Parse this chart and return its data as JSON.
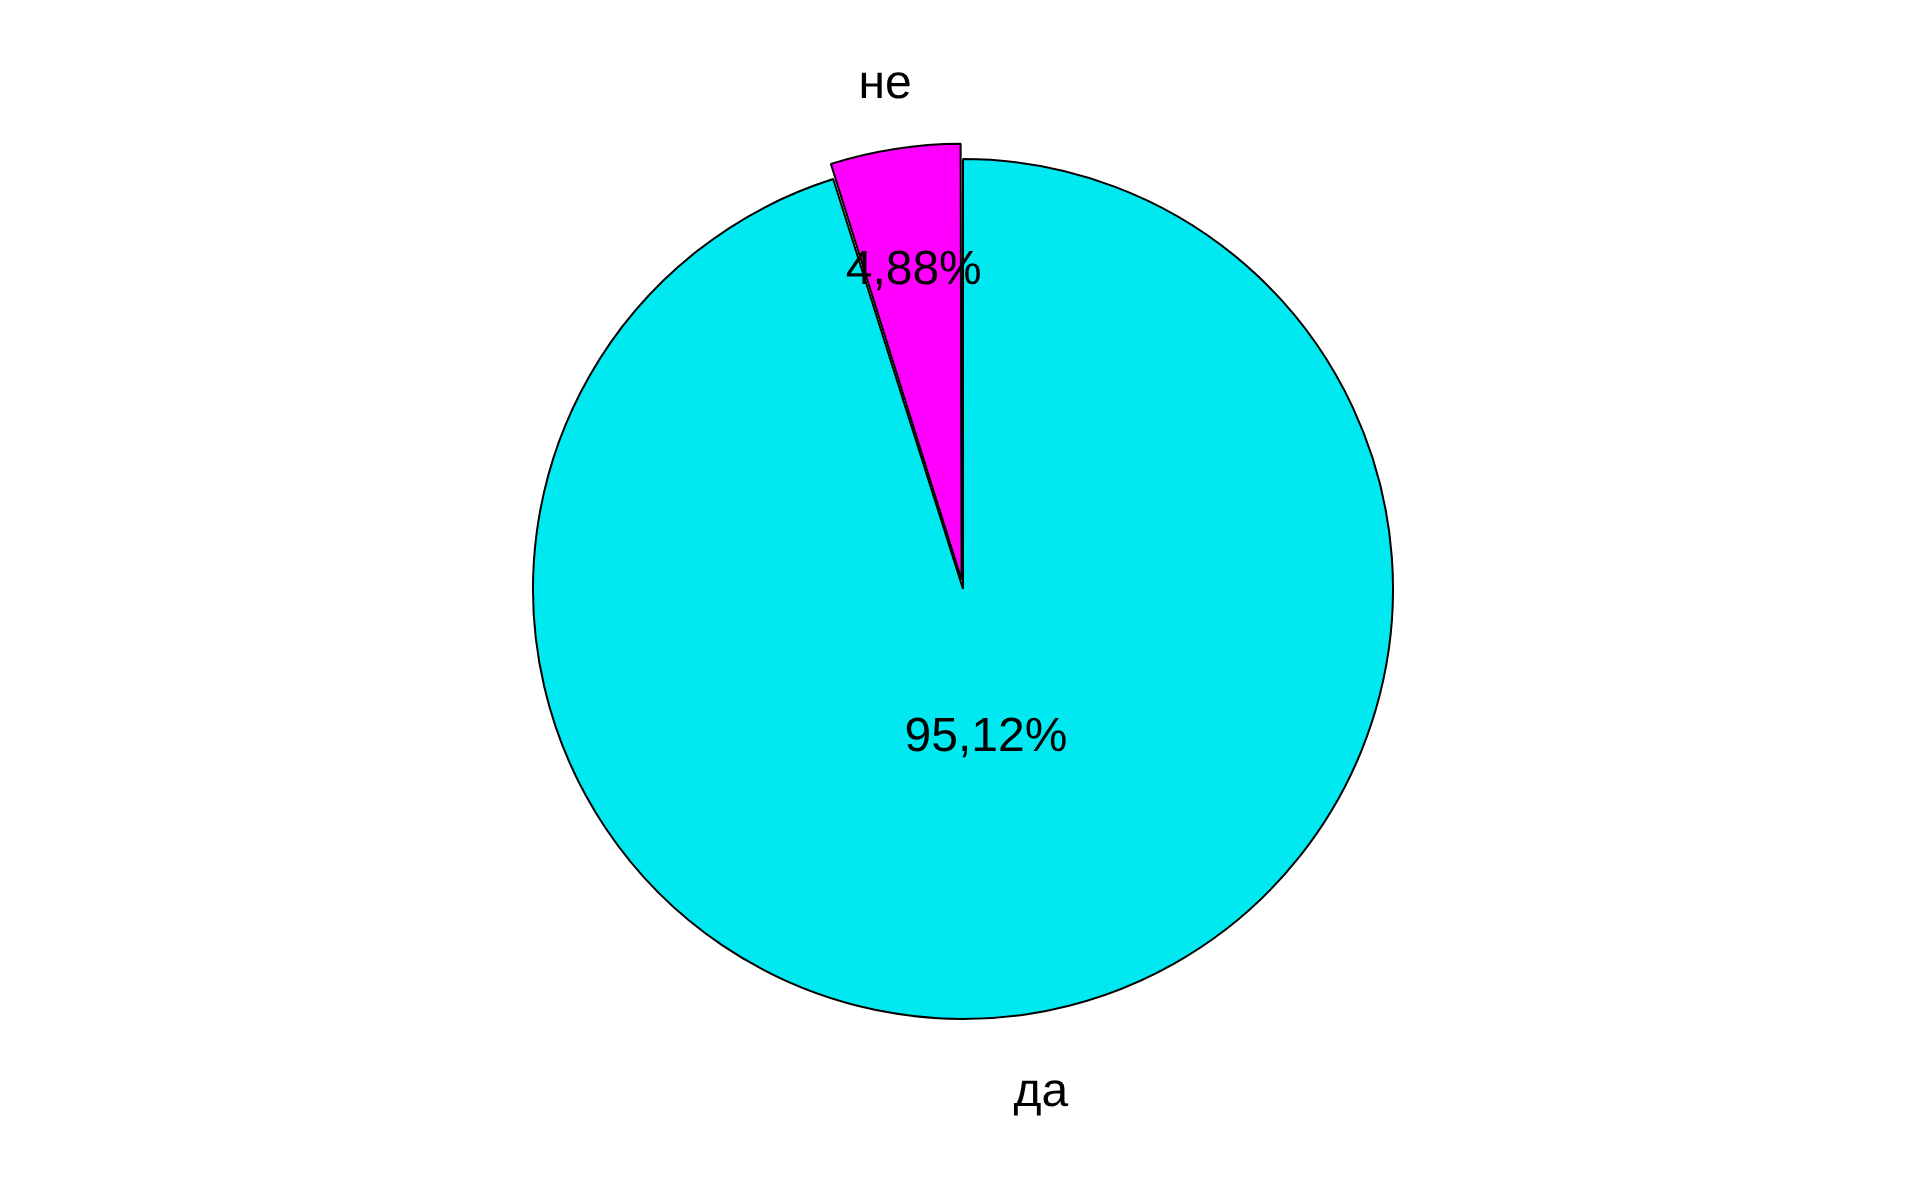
{
  "chart_data": {
    "type": "pie",
    "categories": [
      "да",
      "не"
    ],
    "values": [
      95.12,
      4.88
    ],
    "colors": [
      "#00e8f0",
      "#ff00ff"
    ],
    "value_labels": [
      "95,12%",
      "4,88%"
    ],
    "legend": false
  }
}
